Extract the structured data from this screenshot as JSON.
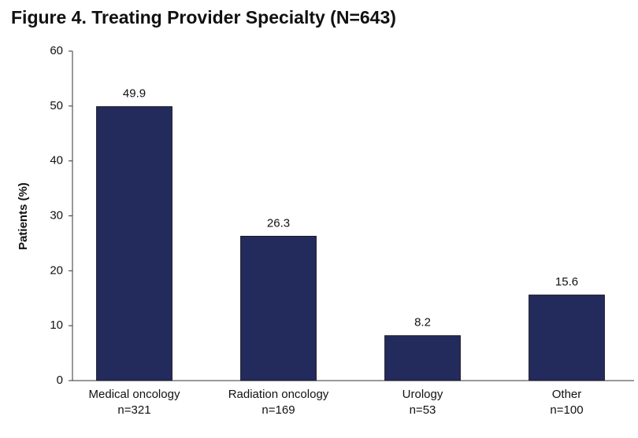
{
  "chart_data": {
    "type": "bar",
    "title": "Figure 4. Treating Provider Specialty (N=643)",
    "y_label": "Patients (%)",
    "categories": [
      "Medical oncology",
      "Radiation oncology",
      "Urology",
      "Other"
    ],
    "category_notes": [
      "n=321",
      "n=169",
      "n=53",
      "n=100"
    ],
    "values": [
      49.9,
      26.3,
      8.2,
      15.6
    ],
    "color": "#232a5c",
    "ylim": [
      0,
      60
    ],
    "yticks": [
      0,
      10,
      20,
      30,
      40,
      50,
      60
    ],
    "grid": false,
    "show_value_labels": true
  }
}
